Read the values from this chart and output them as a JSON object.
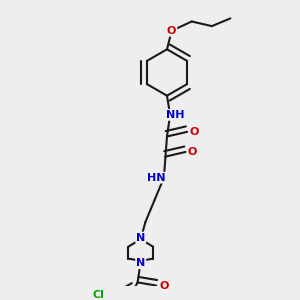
{
  "bg_color": "#eeeeee",
  "line_color": "#1a1a1a",
  "bond_width": 1.5,
  "atom_colors": {
    "N": "#0000cc",
    "O": "#cc0000",
    "Cl": "#00aa00",
    "C": "#1a1a1a"
  },
  "font_size": 8
}
